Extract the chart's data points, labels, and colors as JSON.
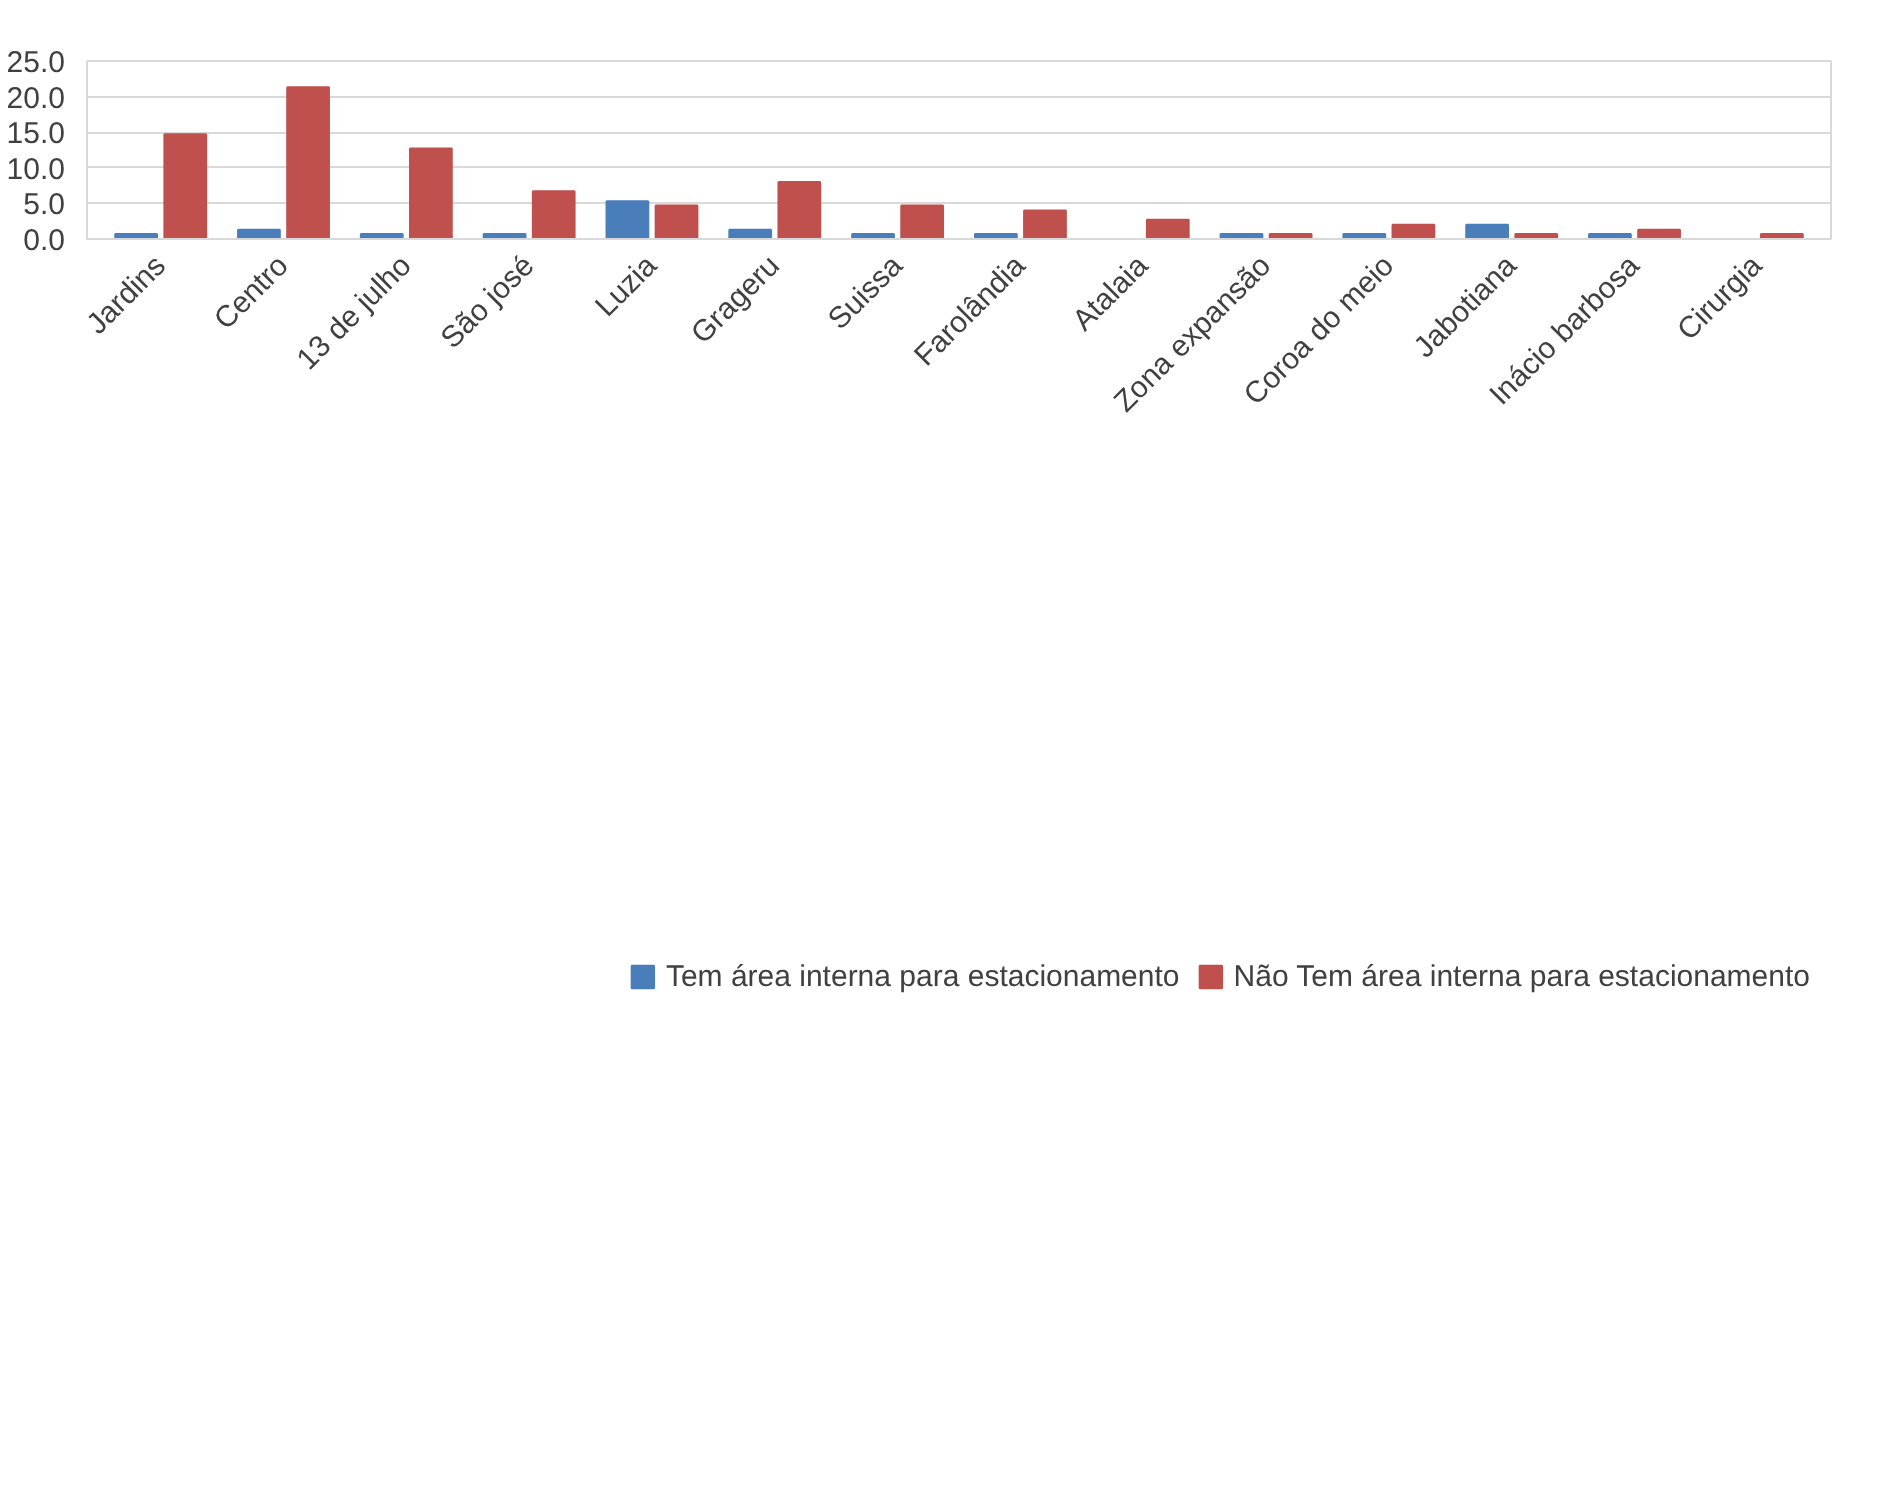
{
  "chart_data": {
    "type": "bar",
    "categories": [
      "Jardins",
      "Centro",
      "13 de julho",
      "São josé",
      "Luzia",
      "Grageru",
      "Suissa",
      "Farolândia",
      "Atalaia",
      "Zona expansão",
      "Coroa do meio",
      "Jabotiana",
      "Inácio barbosa",
      "Cirurgia"
    ],
    "series": [
      {
        "name": "Tem área interna para estacionamento",
        "color": "#4a7ebb",
        "values": [
          0.7,
          1.3,
          0.7,
          0.7,
          5.3,
          1.3,
          0.7,
          0.7,
          0,
          0.7,
          0.7,
          2.0,
          0.7,
          0
        ]
      },
      {
        "name": "Não Tem área interna para estacionamento",
        "color": "#c0504d",
        "values": [
          14.7,
          21.3,
          12.7,
          6.7,
          4.7,
          8.0,
          4.7,
          4.0,
          2.7,
          0.7,
          2.0,
          0.7,
          1.3,
          0.7
        ]
      }
    ],
    "ylim": [
      0,
      25
    ],
    "yticks": [
      {
        "value": 0,
        "label": "0.0"
      },
      {
        "value": 5,
        "label": "5.0"
      },
      {
        "value": 10,
        "label": "10.0"
      },
      {
        "value": 15,
        "label": "15.0"
      },
      {
        "value": 20,
        "label": "20.0"
      },
      {
        "value": 25,
        "label": "25.0"
      }
    ],
    "grid": "y",
    "legend": "bottom"
  }
}
